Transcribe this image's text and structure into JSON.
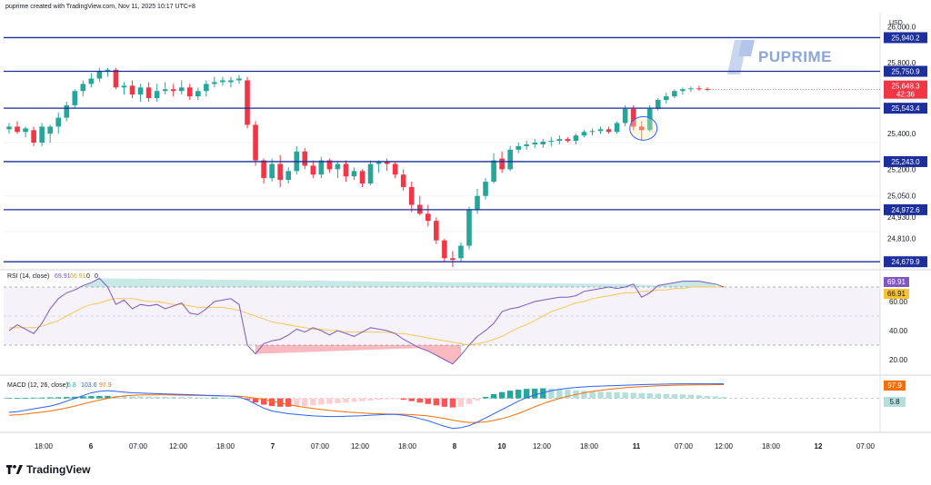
{
  "header": {
    "text": "puprime created with TradingView.com, Nov 11, 2025 10:17 UTC+8"
  },
  "watermark": {
    "text": "PUPRIME"
  },
  "footer": {
    "brand": "TradingView"
  },
  "axis": {
    "currency": "USD",
    "ticks": [
      "26,000.0",
      "25,800.0",
      "25,400.0",
      "25,200.0",
      "25,050.0",
      "24,930.0",
      "24,810.0"
    ],
    "x_labels": [
      "18:00",
      "6",
      "07:00",
      "12:00",
      "18:00",
      "7",
      "07:00",
      "12:00",
      "18:00",
      "8",
      "10",
      "12:00",
      "18:00",
      "11",
      "07:00",
      "12:00",
      "18:00",
      "12",
      "07:00"
    ],
    "current_price": "25,648.3",
    "countdown": "42:36"
  },
  "colors": {
    "up": "#26a69a",
    "down": "#f23645",
    "level": "#1c2f9c",
    "rsi": "#7e57c2",
    "rsi_ma": "#f7c85a",
    "macd": "#2962ff",
    "signal": "#ff6d00"
  },
  "chart_data": [
    {
      "type": "candlestick",
      "title": "",
      "ylim": [
        24640,
        26060
      ],
      "levels": [
        25940.2,
        25750.9,
        25543.4,
        25243.0,
        24972.6,
        24679.9
      ],
      "level_labels": [
        "25,940.2",
        "25,750.9",
        "25,543.4",
        "25,243.0",
        "24,972.6",
        "24,679.9"
      ],
      "candles": [
        [
          25425,
          25460,
          25400,
          25440
        ],
        [
          25440,
          25470,
          25400,
          25410
        ],
        [
          25410,
          25440,
          25380,
          25430
        ],
        [
          25420,
          25440,
          25330,
          25350
        ],
        [
          25350,
          25460,
          25330,
          25440
        ],
        [
          25400,
          25450,
          25350,
          25440
        ],
        [
          25440,
          25520,
          25400,
          25490
        ],
        [
          25490,
          25580,
          25470,
          25560
        ],
        [
          25560,
          25650,
          25540,
          25640
        ],
        [
          25640,
          25700,
          25610,
          25680
        ],
        [
          25680,
          25740,
          25660,
          25710
        ],
        [
          25710,
          25770,
          25690,
          25750
        ],
        [
          25750,
          25770,
          25720,
          25760
        ],
        [
          25760,
          25770,
          25650,
          25660
        ],
        [
          25660,
          25690,
          25620,
          25670
        ],
        [
          25670,
          25700,
          25600,
          25620
        ],
        [
          25620,
          25680,
          25580,
          25660
        ],
        [
          25660,
          25690,
          25580,
          25600
        ],
        [
          25600,
          25680,
          25580,
          25640
        ],
        [
          25640,
          25690,
          25620,
          25650
        ],
        [
          25650,
          25680,
          25610,
          25640
        ],
        [
          25640,
          25700,
          25620,
          25660
        ],
        [
          25660,
          25680,
          25590,
          25610
        ],
        [
          25610,
          25660,
          25590,
          25640
        ],
        [
          25640,
          25700,
          25610,
          25680
        ],
        [
          25680,
          25720,
          25660,
          25690
        ],
        [
          25690,
          25720,
          25670,
          25700
        ],
        [
          25690,
          25720,
          25660,
          25700
        ],
        [
          25700,
          25730,
          25680,
          25710
        ],
        [
          25700,
          25720,
          25430,
          25450
        ],
        [
          25450,
          25470,
          25220,
          25250
        ],
        [
          25250,
          25260,
          25120,
          25150
        ],
        [
          25150,
          25260,
          25130,
          25230
        ],
        [
          25230,
          25280,
          25100,
          25140
        ],
        [
          25140,
          25210,
          25120,
          25190
        ],
        [
          25190,
          25330,
          25170,
          25300
        ],
        [
          25300,
          25320,
          25200,
          25220
        ],
        [
          25220,
          25250,
          25150,
          25170
        ],
        [
          25170,
          25270,
          25150,
          25250
        ],
        [
          25250,
          25260,
          25180,
          25200
        ],
        [
          25200,
          25240,
          25150,
          25230
        ],
        [
          25230,
          25250,
          25130,
          25160
        ],
        [
          25160,
          25210,
          25140,
          25190
        ],
        [
          25190,
          25200,
          25100,
          25120
        ],
        [
          25120,
          25250,
          25110,
          25230
        ],
        [
          25230,
          25250,
          25180,
          25240
        ],
        [
          25240,
          25260,
          25190,
          25230
        ],
        [
          25230,
          25240,
          25150,
          25170
        ],
        [
          25170,
          25200,
          25080,
          25100
        ],
        [
          25100,
          25130,
          24960,
          25000
        ],
        [
          25000,
          25050,
          24940,
          24950
        ],
        [
          24950,
          25000,
          24880,
          24910
        ],
        [
          24910,
          24930,
          24780,
          24800
        ],
        [
          24800,
          24810,
          24680,
          24700
        ],
        [
          24700,
          24740,
          24650,
          24690
        ],
        [
          24700,
          24790,
          24680,
          24770
        ],
        [
          24770,
          24990,
          24750,
          24970
        ],
        [
          24970,
          25090,
          24950,
          25050
        ],
        [
          25050,
          25150,
          25030,
          25130
        ],
        [
          25130,
          25290,
          25120,
          25250
        ],
        [
          25260,
          25300,
          25180,
          25200
        ],
        [
          25200,
          25330,
          25190,
          25310
        ],
        [
          25310,
          25350,
          25290,
          25330
        ],
        [
          25330,
          25360,
          25310,
          25340
        ],
        [
          25340,
          25370,
          25320,
          25350
        ],
        [
          25340,
          25370,
          25320,
          25355
        ],
        [
          25355,
          25380,
          25330,
          25360
        ],
        [
          25360,
          25390,
          25340,
          25370
        ],
        [
          25370,
          25380,
          25350,
          25360
        ],
        [
          25360,
          25400,
          25340,
          25390
        ],
        [
          25390,
          25420,
          25380,
          25410
        ],
        [
          25410,
          25430,
          25390,
          25415
        ],
        [
          25415,
          25440,
          25400,
          25425
        ],
        [
          25425,
          25440,
          25400,
          25410
        ],
        [
          25410,
          25470,
          25400,
          25460
        ],
        [
          25460,
          25560,
          25440,
          25540
        ],
        [
          25540,
          25560,
          25420,
          25440
        ],
        [
          25440,
          25470,
          25360,
          25420
        ],
        [
          25420,
          25560,
          25410,
          25540
        ],
        [
          25540,
          25600,
          25530,
          25590
        ],
        [
          25590,
          25630,
          25570,
          25610
        ],
        [
          25610,
          25650,
          25600,
          25640
        ],
        [
          25640,
          25660,
          25620,
          25650
        ],
        [
          25650,
          25665,
          25635,
          25655
        ],
        [
          25655,
          25670,
          25640,
          25652
        ],
        [
          25652,
          25660,
          25640,
          25648
        ]
      ]
    },
    {
      "type": "line",
      "title": "RSI (14, close)",
      "legend_values": [
        "69.91",
        "66.91",
        "0",
        "0"
      ],
      "ylim": [
        10,
        80
      ],
      "ticks": [
        "60.00",
        "40.00",
        "20.00"
      ],
      "band": [
        30,
        70
      ],
      "current_labels": [
        "69.91",
        "66.91"
      ],
      "series": [
        {
          "name": "RSI",
          "values": [
            40,
            44,
            41,
            38,
            45,
            55,
            62,
            66,
            68,
            71,
            73,
            76,
            70,
            58,
            61,
            55,
            58,
            57,
            58,
            55,
            57,
            59,
            52,
            51,
            55,
            60,
            61,
            62,
            58,
            30,
            24,
            31,
            33,
            34,
            37,
            41,
            39,
            42,
            40,
            37,
            40,
            38,
            36,
            39,
            42,
            41,
            40,
            38,
            34,
            31,
            28,
            26,
            23,
            20,
            17,
            23,
            30,
            36,
            40,
            45,
            53,
            55,
            56,
            58,
            60,
            61,
            62,
            63,
            63,
            64,
            67,
            68,
            69,
            70,
            69,
            70,
            72,
            63,
            66,
            71,
            72,
            73,
            74,
            74,
            74,
            73,
            72,
            70
          ]
        },
        {
          "name": "RSI MA",
          "values": [
            42,
            42,
            42,
            42,
            43,
            45,
            47,
            50,
            53,
            56,
            58,
            59,
            61,
            62,
            62,
            62,
            61,
            60,
            60,
            59,
            58,
            58,
            57,
            56,
            56,
            56,
            56,
            55,
            54,
            52,
            50,
            48,
            46,
            45,
            44,
            43,
            42,
            41,
            41,
            40,
            40,
            39,
            39,
            39,
            39,
            39,
            39,
            38,
            38,
            37,
            36,
            35,
            34,
            33,
            32,
            31,
            30,
            31,
            32,
            34,
            36,
            39,
            42,
            44,
            47,
            50,
            53,
            55,
            57,
            59,
            60,
            62,
            63,
            64,
            65,
            66,
            66,
            67,
            67,
            68,
            68,
            69,
            69,
            70,
            70,
            70,
            70,
            70
          ]
        }
      ]
    },
    {
      "type": "line",
      "title": "MACD (12, 26, close)",
      "legend_values": [
        "5.8",
        "103.6",
        "97.9"
      ],
      "ylim": [
        -230,
        160
      ],
      "current_labels": [
        "97.9",
        "5.8"
      ],
      "histogram": [
        2,
        3,
        4,
        5,
        6,
        7,
        8,
        10,
        12,
        14,
        16,
        17,
        18,
        17,
        16,
        15,
        14,
        13,
        12,
        11,
        10,
        9,
        8,
        7,
        6,
        6,
        5,
        4,
        3,
        -10,
        -30,
        -45,
        -55,
        -60,
        -60,
        -58,
        -55,
        -50,
        -45,
        -40,
        -35,
        -30,
        -25,
        -20,
        -15,
        -10,
        -6,
        -4,
        -10,
        -20,
        -30,
        -40,
        -50,
        -60,
        -65,
        -60,
        -40,
        -15,
        10,
        30,
        45,
        55,
        62,
        68,
        70,
        72,
        70,
        66,
        62,
        58,
        54,
        50,
        48,
        46,
        44,
        42,
        40,
        38,
        36,
        34,
        32,
        30,
        28,
        26,
        22,
        18,
        14,
        10
      ],
      "series": [
        {
          "name": "MACD",
          "values": [
            -100,
            -95,
            -85,
            -75,
            -65,
            -55,
            -40,
            -20,
            0,
            20,
            40,
            50,
            55,
            50,
            45,
            40,
            38,
            36,
            34,
            32,
            30,
            28,
            26,
            24,
            22,
            20,
            18,
            16,
            10,
            -10,
            -40,
            -70,
            -90,
            -100,
            -110,
            -115,
            -120,
            -125,
            -128,
            -130,
            -130,
            -128,
            -126,
            -124,
            -120,
            -118,
            -115,
            -115,
            -120,
            -130,
            -145,
            -160,
            -180,
            -200,
            -215,
            -210,
            -195,
            -170,
            -140,
            -110,
            -80,
            -50,
            -20,
            5,
            25,
            40,
            55,
            65,
            72,
            78,
            82,
            86,
            88,
            90,
            92,
            94,
            96,
            98,
            100,
            101,
            102,
            103,
            104,
            104,
            104,
            104,
            104,
            104
          ]
        },
        {
          "name": "Signal",
          "values": [
            -120,
            -118,
            -112,
            -105,
            -98,
            -90,
            -80,
            -68,
            -55,
            -40,
            -25,
            -12,
            0,
            10,
            18,
            22,
            24,
            25,
            25,
            25,
            24,
            23,
            22,
            21,
            20,
            19,
            18,
            17,
            15,
            10,
            2,
            -8,
            -20,
            -32,
            -44,
            -55,
            -64,
            -72,
            -80,
            -86,
            -92,
            -97,
            -101,
            -105,
            -108,
            -110,
            -112,
            -113,
            -114,
            -116,
            -120,
            -126,
            -134,
            -144,
            -156,
            -166,
            -172,
            -172,
            -168,
            -158,
            -145,
            -128,
            -108,
            -85,
            -60,
            -38,
            -18,
            0,
            15,
            28,
            40,
            50,
            58,
            65,
            71,
            76,
            80,
            84,
            87,
            90,
            92,
            94,
            95,
            96,
            97,
            97,
            98,
            98
          ]
        }
      ]
    }
  ]
}
